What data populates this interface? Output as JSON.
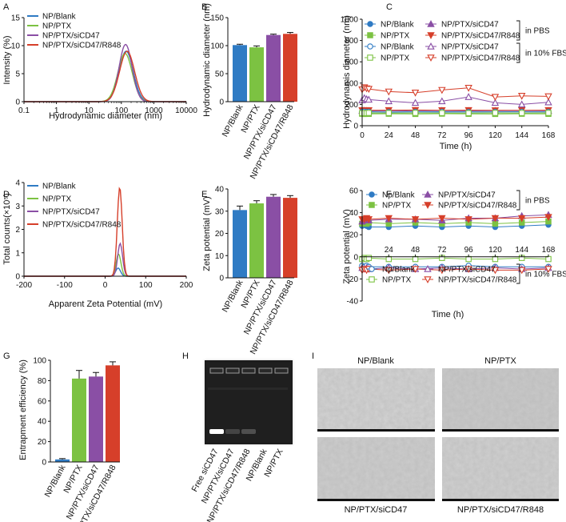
{
  "panel_letters": [
    "A",
    "B",
    "C",
    "D",
    "E",
    "F",
    "G",
    "H",
    "I"
  ],
  "chart_data": [
    {
      "id": "A",
      "type": "line",
      "xlabel": "Hydrodynamic diameter (nm)",
      "ylabel": "Intensity (%)",
      "xscale": "log",
      "xlim": [
        0.1,
        10000
      ],
      "ylim": [
        0,
        15
      ],
      "xticks": [
        "0.1",
        "1",
        "10",
        "100",
        "1000",
        "10000"
      ],
      "yticks": [
        "0",
        "5",
        "10",
        "15"
      ],
      "legend": "top-left",
      "series": [
        {
          "name": "NP/Blank",
          "color": "#2f7bc4",
          "peak_x": 140,
          "peak_y": 9.0,
          "width": 0.22
        },
        {
          "name": "NP/PTX",
          "color": "#7cc242",
          "peak_x": 130,
          "peak_y": 8.6,
          "width": 0.22
        },
        {
          "name": "NP/PTX/siCD47",
          "color": "#8a4fa5",
          "peak_x": 135,
          "peak_y": 10.2,
          "width": 0.2
        },
        {
          "name": "NP/PTX/siCD47/R848",
          "color": "#d63f2a",
          "peak_x": 150,
          "peak_y": 9.0,
          "width": 0.23
        }
      ]
    },
    {
      "id": "B",
      "type": "bar",
      "ylabel": "Hydrodynamic diameter (nm)",
      "ylim": [
        0,
        150
      ],
      "yticks": [
        "0",
        "50",
        "100",
        "150"
      ],
      "categories": [
        "NP/Blank",
        "NP/PTX",
        "NP/PTX/siCD47",
        "NP/PTX/siCD47/R848"
      ],
      "values": [
        101,
        97,
        119,
        121
      ],
      "errors": [
        1.5,
        2.5,
        1.5,
        2.5
      ],
      "colors": [
        "#2f7bc4",
        "#7cc242",
        "#8a4fa5",
        "#d63f2a"
      ]
    },
    {
      "id": "C",
      "type": "line",
      "xlabel": "Time (h)",
      "ylabel": "Hydrodynamis diameter (nm)",
      "xlim": [
        0,
        168
      ],
      "ylim": [
        0,
        1000
      ],
      "xticks": [
        "0",
        "24",
        "48",
        "72",
        "96",
        "120",
        "144",
        "168"
      ],
      "yticks": [
        "0",
        "200",
        "400",
        "600",
        "800",
        "1000"
      ],
      "x": [
        0,
        2,
        4,
        6,
        24,
        48,
        72,
        96,
        120,
        144,
        168
      ],
      "group_labels": [
        "in PBS",
        "in 10% FBS"
      ],
      "series": [
        {
          "name": "NP/Blank",
          "color": "#2f7bc4",
          "marker": "circle",
          "filled": true,
          "y": [
            120,
            118,
            120,
            119,
            118,
            120,
            121,
            118,
            120,
            119,
            121
          ]
        },
        {
          "name": "NP/PTX",
          "color": "#7cc242",
          "marker": "square",
          "filled": true,
          "y": [
            112,
            110,
            112,
            111,
            112,
            110,
            113,
            111,
            110,
            112,
            111
          ]
        },
        {
          "name": "NP/PTX/siCD47",
          "color": "#8a4fa5",
          "marker": "triangle-up",
          "filled": true,
          "y": [
            140,
            141,
            139,
            140,
            138,
            140,
            141,
            139,
            140,
            141,
            140
          ]
        },
        {
          "name": "NP/PTX/siCD47/R848",
          "color": "#d63f2a",
          "marker": "triangle-down",
          "filled": true,
          "y": [
            145,
            146,
            144,
            145,
            146,
            147,
            145,
            146,
            144,
            145,
            146
          ]
        },
        {
          "name": "NP/Blank",
          "color": "#2f7bc4",
          "marker": "circle",
          "filled": false,
          "y": [
            130,
            132,
            130,
            131,
            128,
            130,
            131,
            129,
            130,
            131,
            130
          ]
        },
        {
          "name": "NP/PTX",
          "color": "#7cc242",
          "marker": "square",
          "filled": false,
          "y": [
            118,
            119,
            118,
            120,
            119,
            120,
            119,
            118,
            120,
            119,
            120
          ]
        },
        {
          "name": "NP/PTX/siCD47",
          "color": "#8a4fa5",
          "marker": "triangle-up",
          "filled": false,
          "y": [
            240,
            260,
            250,
            245,
            230,
            215,
            230,
            270,
            215,
            200,
            220
          ]
        },
        {
          "name": "NP/PTX/siCD47/R848",
          "color": "#d63f2a",
          "marker": "triangle-down",
          "filled": false,
          "y": [
            340,
            360,
            350,
            345,
            320,
            310,
            335,
            355,
            270,
            280,
            275
          ]
        }
      ]
    },
    {
      "id": "D",
      "type": "line",
      "xlabel": "Apparent Zeta Potential (mV)",
      "ylabel": "Total counts(×10⁵)",
      "xlim": [
        -200,
        200
      ],
      "ylim": [
        0,
        4
      ],
      "xticks": [
        "-200",
        "-100",
        "0",
        "100",
        "200"
      ],
      "yticks": [
        "0",
        "1",
        "2",
        "3",
        "4"
      ],
      "legend": "top-left",
      "series": [
        {
          "name": "NP/Blank",
          "color": "#2f7bc4",
          "center": 32,
          "peak": 0.35,
          "sigma": 6
        },
        {
          "name": "NP/PTX",
          "color": "#7cc242",
          "center": 33,
          "peak": 0.95,
          "sigma": 6
        },
        {
          "name": "NP/PTX/siCD47",
          "color": "#8a4fa5",
          "center": 37,
          "peak": 1.4,
          "sigma": 6
        },
        {
          "name": "NP/PTX/siCD47/R848",
          "color": "#d63f2a",
          "center": 36,
          "peak": 3.8,
          "sigma": 6
        }
      ]
    },
    {
      "id": "E",
      "type": "bar",
      "ylabel": "Zeta potential (mV)",
      "ylim": [
        0,
        40
      ],
      "yticks": [
        "0",
        "10",
        "20",
        "30",
        "40"
      ],
      "categories": [
        "NP/Blank",
        "NP/PTX",
        "NP/PTX/siCD47",
        "NP/PTX/siCD47/R848"
      ],
      "values": [
        30.5,
        33.5,
        36.5,
        36
      ],
      "errors": [
        1.8,
        1.2,
        1.0,
        1.0
      ],
      "colors": [
        "#2f7bc4",
        "#7cc242",
        "#8a4fa5",
        "#d63f2a"
      ]
    },
    {
      "id": "F",
      "type": "line",
      "xlabel": "Time (h)",
      "ylabel": "Zeta potential (mV)",
      "xlim": [
        0,
        168
      ],
      "ylim": [
        -40,
        60
      ],
      "xticks": [
        "24",
        "48",
        "72",
        "96",
        "120",
        "144",
        "168"
      ],
      "yticks": [
        "-40",
        "-20",
        "0",
        "20",
        "40",
        "60"
      ],
      "x": [
        0,
        2,
        4,
        6,
        24,
        48,
        72,
        96,
        120,
        144,
        168
      ],
      "group_labels": [
        "in PBS",
        "in 10% FBS"
      ],
      "series": [
        {
          "name": "Np/Blank",
          "color": "#2f7bc4",
          "marker": "circle",
          "filled": true,
          "y": [
            28,
            29,
            28,
            27,
            27,
            28,
            27,
            28,
            27,
            28,
            29
          ]
        },
        {
          "name": "NP/PTX",
          "color": "#7cc242",
          "marker": "square",
          "filled": true,
          "y": [
            30,
            31,
            30,
            31,
            30,
            31,
            30,
            31,
            30,
            31,
            32
          ]
        },
        {
          "name": "NP/PTX/siCD47",
          "color": "#8a4fa5",
          "marker": "triangle-up",
          "filled": true,
          "y": [
            32,
            33,
            34,
            33,
            34,
            34,
            33,
            35,
            35,
            37,
            38
          ]
        },
        {
          "name": "NP/PTX/siCD47/R848",
          "color": "#d63f2a",
          "marker": "triangle-down",
          "filled": true,
          "y": [
            34,
            34,
            35,
            34,
            35,
            34,
            35,
            34,
            35,
            35,
            36
          ]
        },
        {
          "name": "Np/Blank",
          "color": "#2f7bc4",
          "marker": "circle",
          "filled": false,
          "y": [
            -8,
            -9,
            -8,
            -9,
            -9,
            -9,
            -9,
            -8,
            -9,
            -9,
            -9
          ]
        },
        {
          "name": "NP/PTX",
          "color": "#7cc242",
          "marker": "square",
          "filled": false,
          "y": [
            -2,
            -1,
            -2,
            -1,
            -2,
            -2,
            -1,
            -2,
            -2,
            -1,
            -2
          ]
        },
        {
          "name": "NP/PTX/siCD47",
          "color": "#8a4fa5",
          "marker": "triangle-up",
          "filled": false,
          "y": [
            -10,
            -11,
            -10,
            -11,
            -10,
            -11,
            -10,
            -11,
            -10,
            -11,
            -10
          ]
        },
        {
          "name": "NP/PTX/siCD47/R848",
          "color": "#d63f2a",
          "marker": "triangle-down",
          "filled": false,
          "y": [
            -12,
            -11,
            -12,
            -11,
            -12,
            -11,
            -12,
            -11,
            -12,
            -12,
            -11
          ]
        }
      ]
    },
    {
      "id": "G",
      "type": "bar",
      "ylabel": "Entrapment efficiency (%)",
      "ylim": [
        0,
        100
      ],
      "yticks": [
        "0",
        "20",
        "40",
        "60",
        "80",
        "100"
      ],
      "categories": [
        "NP/Blank",
        "NP/PTX",
        "NP/PTX/siCD47",
        "NP/PTX/siCD47/R848"
      ],
      "values": [
        2.5,
        82,
        84,
        95
      ],
      "errors": [
        0.8,
        8,
        4,
        3.5
      ],
      "colors": [
        "#2f7bc4",
        "#7cc242",
        "#8a4fa5",
        "#d63f2a"
      ]
    }
  ],
  "gel": {
    "lanes": [
      "Free siCD47",
      "NP/PTX/siCD47",
      "NP/PTX/siCD47/R848",
      "NP/Blank",
      "NP/PTX"
    ],
    "band_intensity": [
      1.0,
      0.18,
      0.25,
      0,
      0
    ]
  },
  "tem": {
    "captions": [
      "NP/Blank",
      "NP/PTX",
      "NP/PTX/siCD47",
      "NP/PTX/siCD47/R848"
    ]
  }
}
